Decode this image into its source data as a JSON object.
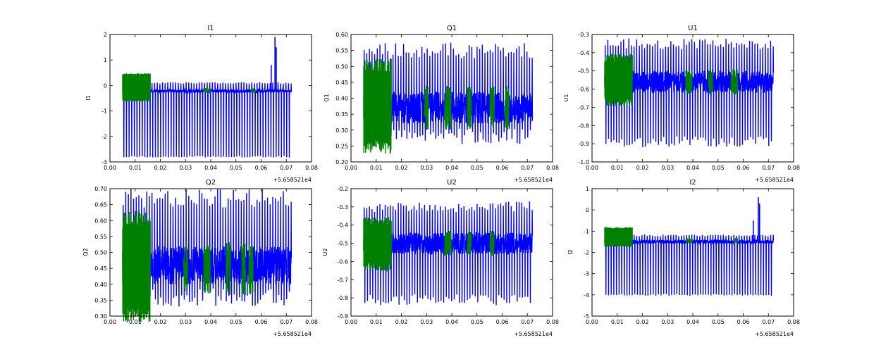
{
  "colors": {
    "primary": "#0000ff",
    "secondary": "#008000",
    "axes": "#000000"
  },
  "chart_data": [
    {
      "type": "line",
      "title": "I1",
      "ylabel": "I1",
      "xlim": [
        0.0,
        0.08
      ],
      "ylim": [
        -3,
        2
      ],
      "xticks": [
        "0.00",
        "0.01",
        "0.02",
        "0.03",
        "0.04",
        "0.05",
        "0.06",
        "0.07",
        "0.08"
      ],
      "yticks": [
        "-3",
        "-2",
        "-1",
        "0",
        "1",
        "2"
      ],
      "x_offset_label": "+5.658521e4",
      "series": [
        {
          "name": "blue",
          "color": "#0000ff",
          "x_range": [
            0.005,
            0.072
          ],
          "baseline": -0.22,
          "noise": 0.06,
          "spike_up": 0.1,
          "spike_down": -2.8,
          "extra_peaks": [
            {
              "x": 0.064,
              "y": 0.8
            },
            {
              "x": 0.0655,
              "y": 1.9
            },
            {
              "x": 0.066,
              "y": 1.5
            }
          ]
        },
        {
          "name": "green",
          "color": "#008000",
          "x_range": [
            0.005,
            0.016
          ],
          "baseline": -0.2,
          "noise": 0.06,
          "spike_up": 0.45,
          "spike_down": -0.6,
          "extra_regions": [
            0.038,
            0.039,
            0.057
          ]
        }
      ]
    },
    {
      "type": "line",
      "title": "Q1",
      "ylabel": "Q1",
      "xlim": [
        0.0,
        0.08
      ],
      "ylim": [
        0.2,
        0.6
      ],
      "xticks": [
        "0.00",
        "0.01",
        "0.02",
        "0.03",
        "0.04",
        "0.05",
        "0.06",
        "0.07",
        "0.08"
      ],
      "yticks": [
        "0.20",
        "0.25",
        "0.30",
        "0.35",
        "0.40",
        "0.45",
        "0.50",
        "0.55",
        "0.60"
      ],
      "x_offset_label": "+5.658521e4",
      "series": [
        {
          "name": "blue",
          "color": "#0000ff",
          "x_range": [
            0.005,
            0.072
          ],
          "baseline": 0.37,
          "noise": 0.05,
          "spike_up": 0.55,
          "spike_down": 0.28
        },
        {
          "name": "green",
          "color": "#008000",
          "x_range": [
            0.005,
            0.016
          ],
          "baseline": 0.37,
          "noise": 0.05,
          "spike_up": 0.5,
          "spike_down": 0.25,
          "extra_regions": [
            0.03,
            0.038,
            0.039,
            0.047,
            0.056,
            0.062
          ]
        }
      ]
    },
    {
      "type": "line",
      "title": "U1",
      "ylabel": "U1",
      "xlim": [
        0.0,
        0.08
      ],
      "ylim": [
        -1.0,
        -0.3
      ],
      "xticks": [
        "0.00",
        "0.01",
        "0.02",
        "0.03",
        "0.04",
        "0.05",
        "0.06",
        "0.07",
        "0.08"
      ],
      "yticks": [
        "-1.0",
        "-0.9",
        "-0.8",
        "-0.7",
        "-0.6",
        "-0.5",
        "-0.4",
        "-0.3"
      ],
      "x_offset_label": "+5.658521e4",
      "series": [
        {
          "name": "blue",
          "color": "#0000ff",
          "x_range": [
            0.005,
            0.072
          ],
          "baseline": -0.56,
          "noise": 0.06,
          "spike_up": -0.35,
          "spike_down": -0.89
        },
        {
          "name": "green",
          "color": "#008000",
          "x_range": [
            0.005,
            0.016
          ],
          "baseline": -0.56,
          "noise": 0.05,
          "spike_up": -0.43,
          "spike_down": -0.67,
          "extra_regions": [
            0.038,
            0.039,
            0.047,
            0.056,
            0.057
          ]
        }
      ]
    },
    {
      "type": "line",
      "title": "Q2",
      "ylabel": "Q2",
      "xlim": [
        0.0,
        0.08
      ],
      "ylim": [
        0.3,
        0.7
      ],
      "xticks": [
        "0.00",
        "0.01",
        "0.02",
        "0.03",
        "0.04",
        "0.05",
        "0.06",
        "0.07",
        "0.08"
      ],
      "yticks": [
        "0.30",
        "0.35",
        "0.40",
        "0.45",
        "0.50",
        "0.55",
        "0.60",
        "0.65",
        "0.70"
      ],
      "x_offset_label": "+5.658521e4",
      "series": [
        {
          "name": "blue",
          "color": "#0000ff",
          "x_range": [
            0.005,
            0.072
          ],
          "baseline": 0.46,
          "noise": 0.06,
          "spike_up": 0.67,
          "spike_down": 0.36
        },
        {
          "name": "green",
          "color": "#008000",
          "x_range": [
            0.005,
            0.016
          ],
          "baseline": 0.45,
          "noise": 0.06,
          "spike_up": 0.6,
          "spike_down": 0.31,
          "extra_regions": [
            0.03,
            0.038,
            0.039,
            0.047,
            0.053,
            0.056
          ]
        }
      ]
    },
    {
      "type": "line",
      "title": "U2",
      "ylabel": "U2",
      "xlim": [
        0.0,
        0.08
      ],
      "ylim": [
        -0.9,
        -0.2
      ],
      "xticks": [
        "0.00",
        "0.01",
        "0.02",
        "0.03",
        "0.04",
        "0.05",
        "0.06",
        "0.07",
        "0.08"
      ],
      "yticks": [
        "-0.9",
        "-0.8",
        "-0.7",
        "-0.6",
        "-0.5",
        "-0.4",
        "-0.3",
        "-0.2"
      ],
      "x_offset_label": "+5.658521e4",
      "series": [
        {
          "name": "blue",
          "color": "#0000ff",
          "x_range": [
            0.005,
            0.072
          ],
          "baseline": -0.5,
          "noise": 0.06,
          "spike_up": -0.3,
          "spike_down": -0.81
        },
        {
          "name": "green",
          "color": "#008000",
          "x_range": [
            0.005,
            0.016
          ],
          "baseline": -0.5,
          "noise": 0.05,
          "spike_up": -0.38,
          "spike_down": -0.63,
          "extra_regions": [
            0.038,
            0.039,
            0.047,
            0.056
          ]
        }
      ]
    },
    {
      "type": "line",
      "title": "I2",
      "ylabel": "I2",
      "xlim": [
        0.0,
        0.08
      ],
      "ylim": [
        -5,
        1
      ],
      "xticks": [
        "0.00",
        "0.01",
        "0.02",
        "0.03",
        "0.04",
        "0.05",
        "0.06",
        "0.07",
        "0.08"
      ],
      "yticks": [
        "-5",
        "-4",
        "-3",
        "-2",
        "-1",
        "0",
        "1"
      ],
      "x_offset_label": "+5.658521e4",
      "series": [
        {
          "name": "blue",
          "color": "#0000ff",
          "x_range": [
            0.005,
            0.072
          ],
          "baseline": -1.5,
          "noise": 0.08,
          "spike_up": -1.2,
          "spike_down": -4.0,
          "extra_peaks": [
            {
              "x": 0.064,
              "y": -0.5
            },
            {
              "x": 0.066,
              "y": 0.6
            },
            {
              "x": 0.0665,
              "y": 0.3
            }
          ]
        },
        {
          "name": "green",
          "color": "#008000",
          "x_range": [
            0.005,
            0.016
          ],
          "baseline": -1.45,
          "noise": 0.08,
          "spike_up": -0.85,
          "spike_down": -1.7,
          "extra_regions": [
            0.038,
            0.039,
            0.057
          ]
        }
      ]
    }
  ]
}
